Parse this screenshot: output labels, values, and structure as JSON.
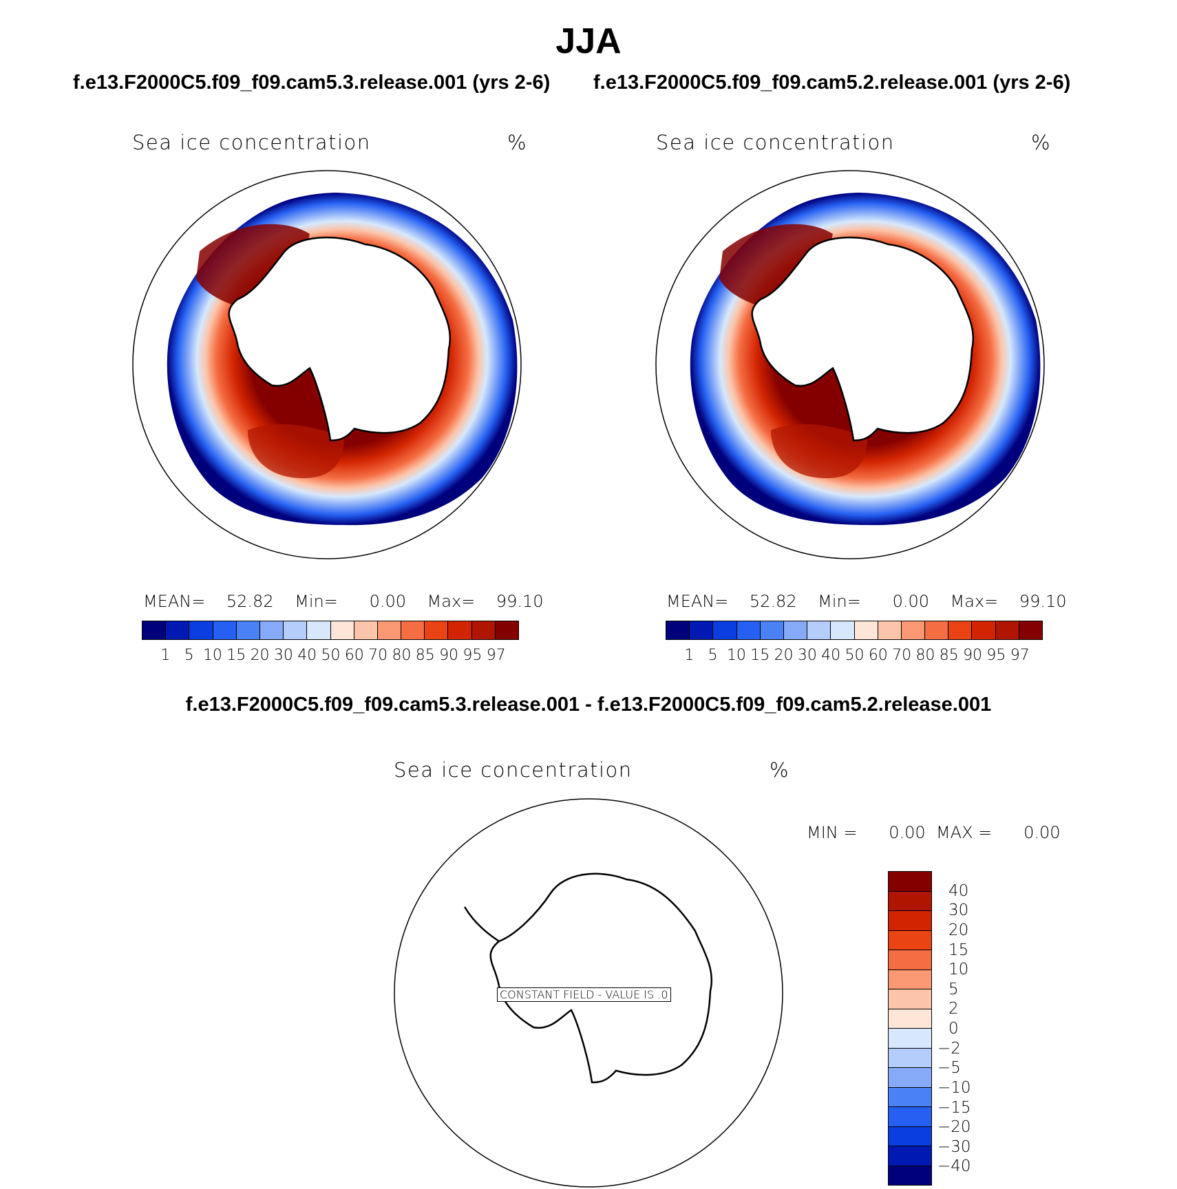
{
  "figure": {
    "season": "JJA",
    "run_a": "f.e13.F2000C5.f09_f09.cam5.3.release.001 (yrs 2-6)",
    "run_b": "f.e13.F2000C5.f09_f09.cam5.2.release.001 (yrs 2-6)",
    "difference_title": "f.e13.F2000C5.f09_f09.cam5.3.release.001 - f.e13.F2000C5.f09_f09.cam5.2.release.001"
  },
  "panel_a": {
    "title": "Sea ice concentration",
    "units": "%",
    "mean_label": "MEAN=",
    "mean_value": "52.82",
    "min_label": "Min=",
    "min_value": "0.00",
    "max_label": "Max=",
    "max_value": "99.10"
  },
  "panel_b": {
    "title": "Sea ice concentration",
    "units": "%",
    "mean_label": "MEAN=",
    "mean_value": "52.82",
    "min_label": "Min=",
    "min_value": "0.00",
    "max_label": "Max=",
    "max_value": "99.10"
  },
  "panel_diff": {
    "title": "Sea ice concentration",
    "units": "%",
    "min_label": "MIN =",
    "min_value": "0.00",
    "max_label": "MAX =",
    "max_value": "0.00",
    "constant_field_text": "CONSTANT FIELD - VALUE IS .0"
  },
  "colorbar_main": {
    "levels": [
      "1",
      "5",
      "10",
      "15",
      "20",
      "30",
      "40",
      "50",
      "60",
      "70",
      "80",
      "85",
      "90",
      "95",
      "97"
    ],
    "colors": [
      "#00007d",
      "#0019b3",
      "#0a3ee0",
      "#2560f2",
      "#4a82f5",
      "#86aaf8",
      "#b4cdfa",
      "#d7e8fc",
      "#fde6d8",
      "#fcc4a9",
      "#f99873",
      "#f56d43",
      "#ea4414",
      "#d22400",
      "#b01500",
      "#840000"
    ]
  },
  "colorbar_diff": {
    "levels": [
      "40",
      "30",
      "20",
      "15",
      "10",
      "5",
      "2",
      "0",
      "−2",
      "−5",
      "−10",
      "−15",
      "−20",
      "−30",
      "−40"
    ],
    "colors": [
      "#840000",
      "#b01500",
      "#d22400",
      "#ea4414",
      "#f56d43",
      "#f99873",
      "#fcc4a9",
      "#fde6d8",
      "#d7e8fc",
      "#b4cdfa",
      "#86aaf8",
      "#4a82f5",
      "#2560f2",
      "#0a3ee0",
      "#0019b3",
      "#00007d"
    ]
  }
}
